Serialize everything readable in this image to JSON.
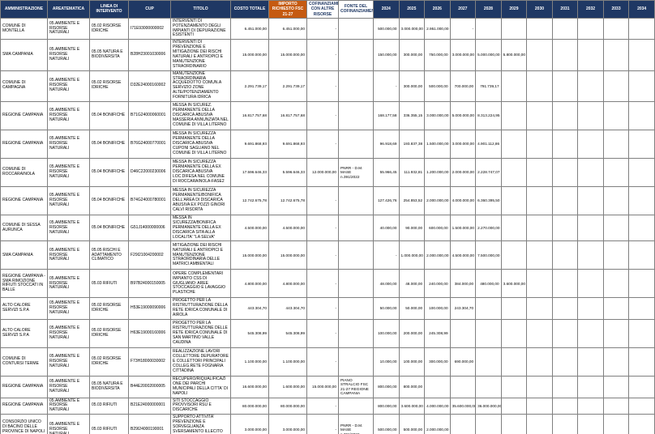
{
  "colors": {
    "header_bg": "#1f3864",
    "importo_header_bg": "#c55a11",
    "grid_line": "#808080"
  },
  "header": {
    "columns": [
      "AMMINISTRAZIONE",
      "AREATEMATICA",
      "LINEA DI INTERVENTO",
      "CUP",
      "TITOLO",
      "COSTO TOTALE",
      "IMPORTO RICHIESTO FSC 21-27",
      "COFINANZIAMENTO CON ALTRE RISORSE",
      "FONTE DEL COFINANZIAMENTO"
    ],
    "years": [
      "2024",
      "2025",
      "2026",
      "2027",
      "2028",
      "2029",
      "2030",
      "2031",
      "2032",
      "2033",
      "2034"
    ]
  },
  "rows": [
    {
      "amministrazione": "COMUNE DI MONTELLA",
      "area": "05.AMBIENTE E RISORSE NATURALI",
      "linea": "05.02 RISORSE IDRICHE",
      "cup": "I71E93000000002",
      "titolo": "INTERVENTI DI POTENZIAMENTO DEGLI IMPIANTI DI DEPURAZIONE ESISTENTI",
      "costo": "6.451.000,00",
      "importo": "6.451.000,00",
      "cofinanziamento": "-",
      "fonte": "",
      "anni": [
        "500.000,00",
        "3.000.000,00",
        "2.951.000,00",
        "-",
        "",
        "",
        "",
        "",
        "",
        "",
        ""
      ]
    },
    {
      "amministrazione": "SMA CAMPANIA",
      "area": "05.AMBIENTE E RISORSE NATURALI",
      "linea": "05.05 NATURA E BIODIVERSITA",
      "cup": "B28H23001030006",
      "titolo": "INTERVENTI DI PREVENZIONE E MITIGAZIONE DEI RISCHI NATURALI E ANTROPICI E MANUTENZIONE STRAORDINARIO",
      "costo": "15.000.000,00",
      "importo": "15.000.000,00",
      "cofinanziamento": "-",
      "fonte": "",
      "anni": [
        "150.000,00",
        "300.000,00",
        "750.000,00",
        "3.000.000,00",
        "5.000.000,00",
        "5.800.000,00",
        "",
        "",
        "",
        "",
        ""
      ]
    },
    {
      "amministrazione": "COMUNE DI CAMPAGNA",
      "area": "05.AMBIENTE E RISORSE NATURALI",
      "linea": "05.02 RISORSE IDRICHE",
      "cup": "D32E24000160002",
      "titolo": "MANUTENZIONE STRAORDINARIA ACQUEDOTTO COMUN.A SERVIZIO ZONE ALTE/POTENZIAMENTO FORNITURA IDRICA",
      "costo": "2.291.739,17",
      "importo": "2.291.739,17",
      "cofinanziamento": "-",
      "fonte": "",
      "anni": [
        "-",
        "300.000,00",
        "500.000,00",
        "700.000,00",
        "791.739,17",
        "",
        "",
        "",
        "",
        "",
        ""
      ]
    },
    {
      "amministrazione": "REGIONE CAMPANIA",
      "area": "05.AMBIENTE E RISORSE NATURALI",
      "linea": "05.04 BONIFICHE",
      "cup": "B71G24000060001",
      "titolo": "MESSA IN SICUREZ. PERMANENTE DELLA DISCARICA ABUSIVA MASSERIA ANNUNZIATA NEL COMUNE DI VILLA LITERNO",
      "costo": "16.817.757,68",
      "importo": "16.817.757,68",
      "cofinanziamento": "-",
      "fonte": "",
      "anni": [
        "168.177,58",
        "336.355,15",
        "3.000.000,00",
        "5.000.000,00",
        "8.313.224,95",
        "",
        "",
        "",
        "",
        "",
        ""
      ]
    },
    {
      "amministrazione": "REGIONE CAMPANIA",
      "area": "05.AMBIENTE E RISORSE NATURALI",
      "linea": "05.04 BONIFICHE",
      "cup": "B76G24000770001",
      "titolo": "MESSA IN SICUREZZA PERMANENTE DELLA DISCARICA ABUSIVA CUPONI SAGLIANO NEL COMUNE DI VILLA LITERNO",
      "costo": "9.691.868,93",
      "importo": "9.691.868,93",
      "cofinanziamento": "-",
      "fonte": "",
      "anni": [
        "96.918,69",
        "193.837,38",
        "1.500.000,00",
        "3.000.000,00",
        "4.901.112,86",
        "",
        "",
        "",
        "",
        "",
        ""
      ]
    },
    {
      "amministrazione": "COMUNE DI ROCCARAINOLA",
      "area": "05.AMBIENTE E RISORSE NATURALI",
      "linea": "05.04 BONIFICHE",
      "cup": "D46C22000230006",
      "titolo": "MESSA IN SICUREZZA PERMANENTE DELLA EX DISCARICA ABUSIVA LOC.DIFESA NEL COMUNE DI ROCCARAINOLA-FASE2",
      "costo": "17.596.646,33",
      "importo": "5.596.646,33",
      "cofinanziamento": "12.000.000,00",
      "fonte": "PNRR - D.M. MASE n.391/2022",
      "anni": [
        "55.966,45",
        "111.932,81",
        "1.200.000,00",
        "2.000.000,00",
        "2.228.747,07",
        "",
        "",
        "",
        "",
        "",
        ""
      ]
    },
    {
      "amministrazione": "REGIONE CAMPANIA",
      "area": "05.AMBIENTE E RISORSE NATURALI",
      "linea": "05.04 BONIFICHE",
      "cup": "B74G24000780001",
      "titolo": "MESSA IN SICUREZZA PERMANENTE/BONIFICA DELL'AREA DI DISCARICA ABUSIVA EX POZZI GINORI CALVI RISORTA",
      "costo": "12.742.675,78",
      "importo": "12.742.675,78",
      "cofinanziamento": "-",
      "fonte": "",
      "anni": [
        "127.426,76",
        "254.853,52",
        "2.000.000,00",
        "4.000.000,00",
        "6.360.395,50",
        "",
        "",
        "",
        "",
        "",
        ""
      ]
    },
    {
      "amministrazione": "COMUNE DI SESSA AURUNCA",
      "area": "05.AMBIENTE E RISORSE NATURALI",
      "linea": "05.04 BONIFICHE",
      "cup": "G51J14000000006",
      "titolo": "MESSA IN SICUREZZA/BONIFICA PERMANENTE DELLA EX DISCARICA SITA ALLA LOCALITA' \"LA SELVA\"",
      "costo": "4.500.000,00",
      "importo": "4.500.000,00",
      "cofinanziamento": "-",
      "fonte": "",
      "anni": [
        "40.000,00",
        "90.000,00",
        "600.000,00",
        "1.500.000,00",
        "2.270.000,00",
        "",
        "",
        "",
        "",
        "",
        ""
      ]
    },
    {
      "amministrazione": "SMA CAMPANIA",
      "area": "05.AMBIENTE E RISORSE NATURALI",
      "linea": "05.05 RISCHI E ADATTAMENTO CLIMATICO",
      "cup": "F29I21004200002",
      "titolo": "MITIGAZIONE DEI RISCHI NATURALI E ANTROPICI E MANUTENZIONE STRAORDINARIA DELLE MATRICI AMBIENTALI",
      "costo": "15.000.000,00",
      "importo": "15.000.000,00",
      "cofinanziamento": "-",
      "fonte": "",
      "anni": [
        "-",
        "1.000.000,00",
        "2.000.000,00",
        "4.500.000,00",
        "7.500.000,00",
        "",
        "",
        "",
        "",
        "",
        ""
      ]
    },
    {
      "amministrazione": "REGIONE CAMPANIA - SMA RIMOZIONE RIFIUTI STOCCATI IN BALLE",
      "area": "05.AMBIENTE E RISORSE NATURALI",
      "linea": "05.03 RIFIUTI",
      "cup": "B97B24000150005",
      "titolo": "OPERE COMPLEMENTARI IMPIANTO CSS DI GIUGLIANO: AREE STOCCAGGIO E LAVAGGIO PLASTICHE",
      "costo": "4.800.000,00",
      "importo": "4.800.000,00",
      "cofinanziamento": "-",
      "fonte": "",
      "anni": [
        "48.000,00",
        "48.000,00",
        "240.000,00",
        "384.000,00",
        "480.000,00",
        "3.600.000,00",
        "",
        "",
        "",
        "",
        ""
      ]
    },
    {
      "amministrazione": "ALTO CALORE SERVIZI S.P.A",
      "area": "05.AMBIENTE E RISORSE NATURALI",
      "linea": "05.02 RISORSE IDRICHE",
      "cup": "H53E19000090006",
      "titolo": "PROGETTO PER LA RISTRUTTURAZIONE DELLA RETE IDRICA COMUNALE DI AIROLA",
      "costo": "443.304,70",
      "importo": "443.304,70",
      "cofinanziamento": "-",
      "fonte": "",
      "anni": [
        "50.000,00",
        "50.000,00",
        "100.000,00",
        "243.304,70",
        "",
        "",
        "",
        "",
        "",
        "",
        ""
      ]
    },
    {
      "amministrazione": "ALTO CALORE SERVIZI S.P.A",
      "area": "05.AMBIENTE E RISORSE NATURALI",
      "linea": "05.02 RISORSE IDRICHE",
      "cup": "H63E19000160006",
      "titolo": "PROGETTO PER LA RISTRUTTURAZIONE DELLE RETE IDRICA COMUNALE DI SAN MARTINO VALLE CAUDINA",
      "costo": "545.308,99",
      "importo": "545.308,99",
      "cofinanziamento": "-",
      "fonte": "",
      "anni": [
        "100.000,00",
        "200.000,00",
        "245.308,99",
        "",
        "",
        "",
        "",
        "",
        "",
        "",
        ""
      ]
    },
    {
      "amministrazione": "COMUNE DI CONTURSI TERME",
      "area": "05.AMBIENTE E RISORSE NATURALI",
      "linea": "05.02 RISORSE IDRICHE",
      "cup": "F73H18000030002",
      "titolo": "REALIZZAZIONE LAVORI COLLETTORE DEPURATORE E COLLETTORI PRINCIPALI COLLEG.RETE FOGNARIA CITTADINA",
      "costo": "1.100.000,00",
      "importo": "1.100.000,00",
      "cofinanziamento": "-",
      "fonte": "",
      "anni": [
        "10.000,00",
        "100.000,00",
        "300.000,00",
        "690.000,00",
        "",
        "",
        "",
        "",
        "",
        "",
        ""
      ]
    },
    {
      "amministrazione": "REGIONE CAMPANIA",
      "area": "05.AMBIENTE E RISORSE NATURALI",
      "linea": "05.05 NATURA E BIODIVERSITA",
      "cup": "B44E20002000005",
      "titolo": "RECUPERO/RIQUALIFICAZIONE DEI PARCHI MUNICIPALI DELLA CITTA' DI NAPOLI",
      "costo": "16.600.000,00",
      "importo": "1.600.000,00",
      "cofinanziamento": "15.000.000,00",
      "fonte": "PIANO STRALCIO FSC 21-27 REGIONE CAMPANIA",
      "anni": [
        "800.000,00",
        "800.000,00",
        "",
        "",
        "",
        "",
        "",
        "",
        "",
        "",
        ""
      ]
    },
    {
      "amministrazione": "REGIONE CAMPANIA",
      "area": "05.AMBIENTE E RISORSE NATURALI",
      "linea": "05.03 RIFIUTI",
      "cup": "B21E24000000001",
      "titolo": "SITI STOCCAGGIO PROVVISORI RSU E DISCARICHE",
      "costo": "80.000.000,00",
      "importo": "80.000.000,00",
      "cofinanziamento": "-",
      "fonte": "",
      "anni": [
        "800.000,00",
        "3.600.000,00",
        "4.000.000,00",
        "35.600.000,00",
        "36.000.000,00",
        "",
        "",
        "",
        "",
        "",
        ""
      ]
    },
    {
      "amministrazione": "CONSORZIO UNICO DI BACINO DELLE PROVINCE DI NAPOLI E CASERTA",
      "area": "05.AMBIENTE E RISORSE NATURALI",
      "linea": "05.03 RIFIUTI",
      "cup": "B29I24000190001",
      "titolo": "SUPPORTO ATTIVITA' PREVENZIONE E SORVEGLIANZA SVERSAMENTO ILLECITO DEI RIFIUTI NEI CORPI IDRICI",
      "costo": "3.000.000,00",
      "importo": "3.000.000,00",
      "cofinanziamento": "-",
      "fonte": "PNRR - D.M. MASE n.391/2022",
      "anni": [
        "500.000,00",
        "500.000,00",
        "2.000.000,00",
        "",
        "",
        "",
        "",
        "",
        "",
        "",
        ""
      ]
    }
  ]
}
